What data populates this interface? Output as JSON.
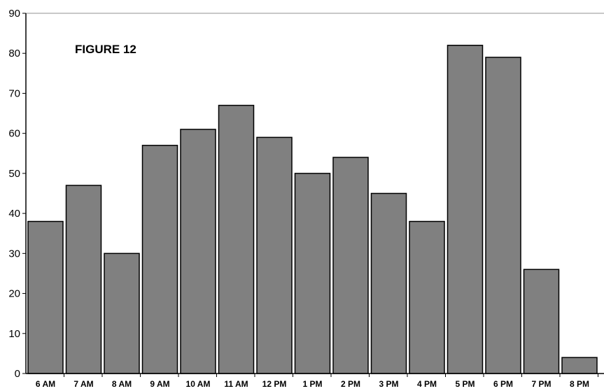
{
  "chart_data": {
    "type": "bar",
    "title": "FIGURE 12",
    "categories": [
      "6 AM",
      "7 AM",
      "8 AM",
      "9 AM",
      "10 AM",
      "11 AM",
      "12 PM",
      "1 PM",
      "2 PM",
      "3 PM",
      "4 PM",
      "5 PM",
      "6 PM",
      "7 PM",
      "8 PM"
    ],
    "values": [
      38,
      47,
      30,
      57,
      61,
      67,
      59,
      50,
      54,
      45,
      38,
      82,
      79,
      26,
      4
    ],
    "xlabel": "",
    "ylabel": "",
    "ylim": [
      0,
      90
    ],
    "yticks": [
      0,
      10,
      20,
      30,
      40,
      50,
      60,
      70,
      80,
      90
    ],
    "grid": false,
    "bar_color": "#808080",
    "bar_edge_color": "#000000"
  }
}
